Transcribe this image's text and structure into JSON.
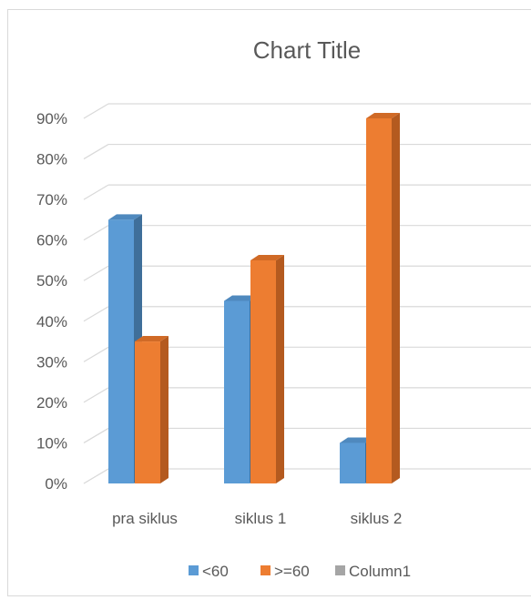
{
  "chart_data": {
    "type": "bar",
    "title": "Chart Title",
    "categories": [
      "pra siklus",
      "siklus 1",
      "siklus 2"
    ],
    "series": [
      {
        "name": "<60",
        "values": [
          65,
          45,
          10
        ],
        "color": "#5B9BD5"
      },
      {
        "name": ">=60",
        "values": [
          35,
          55,
          90
        ],
        "color": "#ED7D31"
      },
      {
        "name": "Column1",
        "values": [
          null,
          null,
          null
        ],
        "color": "#A5A5A5"
      }
    ],
    "y_ticks": [
      "0%",
      "10%",
      "20%",
      "30%",
      "40%",
      "50%",
      "60%",
      "70%",
      "80%",
      "90%"
    ],
    "ylim": [
      0,
      90
    ],
    "grid": true,
    "legend_position": "bottom",
    "style": "3d-clustered-column"
  }
}
